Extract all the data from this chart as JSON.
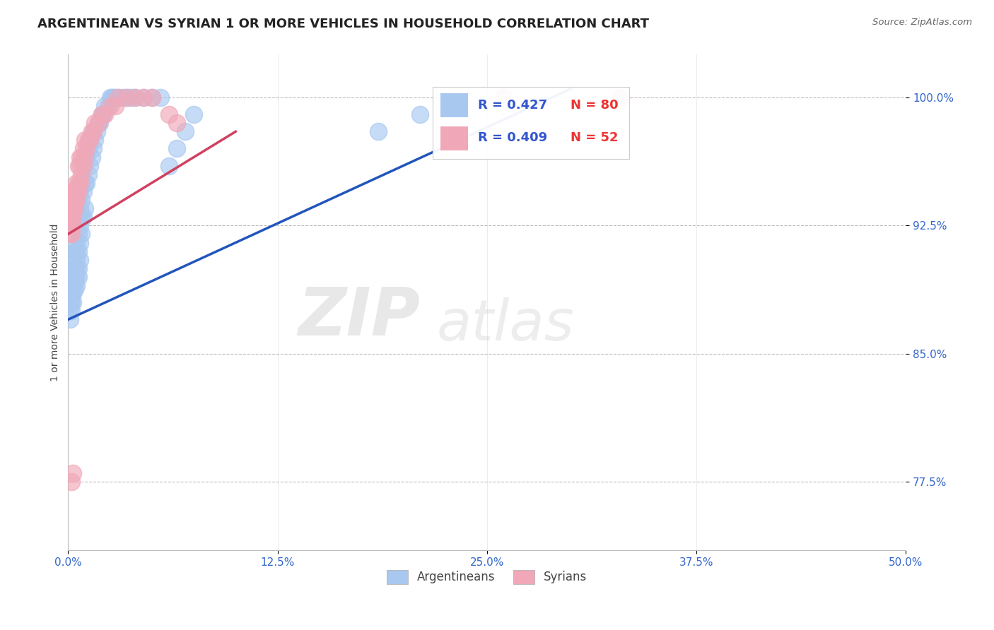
{
  "title": "ARGENTINEAN VS SYRIAN 1 OR MORE VEHICLES IN HOUSEHOLD CORRELATION CHART",
  "source": "Source: ZipAtlas.com",
  "ylabel": "1 or more Vehicles in Household",
  "xlim": [
    0.0,
    0.5
  ],
  "ylim": [
    0.735,
    1.025
  ],
  "xtick_labels": [
    "0.0%",
    "12.5%",
    "25.0%",
    "37.5%",
    "50.0%"
  ],
  "xtick_vals": [
    0.0,
    0.125,
    0.25,
    0.375,
    0.5
  ],
  "ytick_labels": [
    "77.5%",
    "85.0%",
    "92.5%",
    "100.0%"
  ],
  "ytick_vals": [
    0.775,
    0.85,
    0.925,
    1.0
  ],
  "legend_R_blue": "R = 0.427",
  "legend_N_blue": "N = 80",
  "legend_R_pink": "R = 0.409",
  "legend_N_pink": "N = 52",
  "blue_color": "#A8C8F0",
  "pink_color": "#F0A8B8",
  "blue_line_color": "#2255BB",
  "pink_line_color": "#D04060",
  "watermark_zip": "ZIP",
  "watermark_atlas": "atlas",
  "blue_trend_x": [
    0.0,
    0.3
  ],
  "blue_trend_y": [
    0.87,
    1.005
  ],
  "pink_trend_x": [
    0.0,
    0.1
  ],
  "pink_trend_y": [
    0.92,
    0.98
  ],
  "blue_x": [
    0.001,
    0.001,
    0.001,
    0.002,
    0.002,
    0.002,
    0.002,
    0.003,
    0.003,
    0.003,
    0.003,
    0.003,
    0.003,
    0.004,
    0.004,
    0.004,
    0.004,
    0.004,
    0.005,
    0.005,
    0.005,
    0.005,
    0.005,
    0.005,
    0.006,
    0.006,
    0.006,
    0.006,
    0.006,
    0.007,
    0.007,
    0.007,
    0.007,
    0.007,
    0.008,
    0.008,
    0.008,
    0.008,
    0.009,
    0.009,
    0.009,
    0.01,
    0.01,
    0.01,
    0.011,
    0.011,
    0.012,
    0.012,
    0.013,
    0.013,
    0.014,
    0.015,
    0.015,
    0.016,
    0.017,
    0.018,
    0.019,
    0.02,
    0.021,
    0.022,
    0.024,
    0.025,
    0.026,
    0.027,
    0.028,
    0.03,
    0.032,
    0.034,
    0.036,
    0.038,
    0.04,
    0.045,
    0.05,
    0.055,
    0.06,
    0.065,
    0.07,
    0.075,
    0.185,
    0.21
  ],
  "blue_y": [
    0.87,
    0.875,
    0.88,
    0.875,
    0.88,
    0.885,
    0.89,
    0.88,
    0.885,
    0.89,
    0.895,
    0.9,
    0.905,
    0.888,
    0.892,
    0.896,
    0.9,
    0.91,
    0.89,
    0.895,
    0.9,
    0.905,
    0.91,
    0.915,
    0.895,
    0.9,
    0.91,
    0.92,
    0.93,
    0.905,
    0.915,
    0.925,
    0.935,
    0.945,
    0.92,
    0.93,
    0.94,
    0.95,
    0.93,
    0.945,
    0.96,
    0.935,
    0.95,
    0.965,
    0.95,
    0.965,
    0.955,
    0.97,
    0.96,
    0.975,
    0.965,
    0.97,
    0.98,
    0.975,
    0.98,
    0.985,
    0.985,
    0.99,
    0.99,
    0.995,
    0.995,
    1.0,
    1.0,
    1.0,
    1.0,
    1.0,
    1.0,
    1.0,
    1.0,
    1.0,
    1.0,
    1.0,
    1.0,
    1.0,
    0.96,
    0.97,
    0.98,
    0.99,
    0.98,
    0.99
  ],
  "pink_x": [
    0.001,
    0.001,
    0.001,
    0.002,
    0.002,
    0.002,
    0.002,
    0.003,
    0.003,
    0.003,
    0.003,
    0.003,
    0.004,
    0.004,
    0.004,
    0.005,
    0.005,
    0.005,
    0.006,
    0.006,
    0.006,
    0.007,
    0.007,
    0.007,
    0.008,
    0.008,
    0.009,
    0.009,
    0.01,
    0.01,
    0.011,
    0.012,
    0.013,
    0.014,
    0.015,
    0.016,
    0.018,
    0.02,
    0.022,
    0.025,
    0.028,
    0.03,
    0.035,
    0.04,
    0.045,
    0.05,
    0.06,
    0.065,
    0.002,
    0.003,
    0.26,
    0.33
  ],
  "pink_y": [
    0.92,
    0.925,
    0.93,
    0.92,
    0.925,
    0.93,
    0.935,
    0.925,
    0.93,
    0.935,
    0.94,
    0.945,
    0.935,
    0.94,
    0.945,
    0.94,
    0.945,
    0.95,
    0.945,
    0.95,
    0.96,
    0.95,
    0.96,
    0.965,
    0.955,
    0.965,
    0.96,
    0.97,
    0.965,
    0.975,
    0.97,
    0.975,
    0.975,
    0.98,
    0.98,
    0.985,
    0.985,
    0.99,
    0.99,
    0.995,
    0.995,
    1.0,
    1.0,
    1.0,
    1.0,
    1.0,
    0.99,
    0.985,
    0.775,
    0.78,
    1.0,
    1.0
  ]
}
